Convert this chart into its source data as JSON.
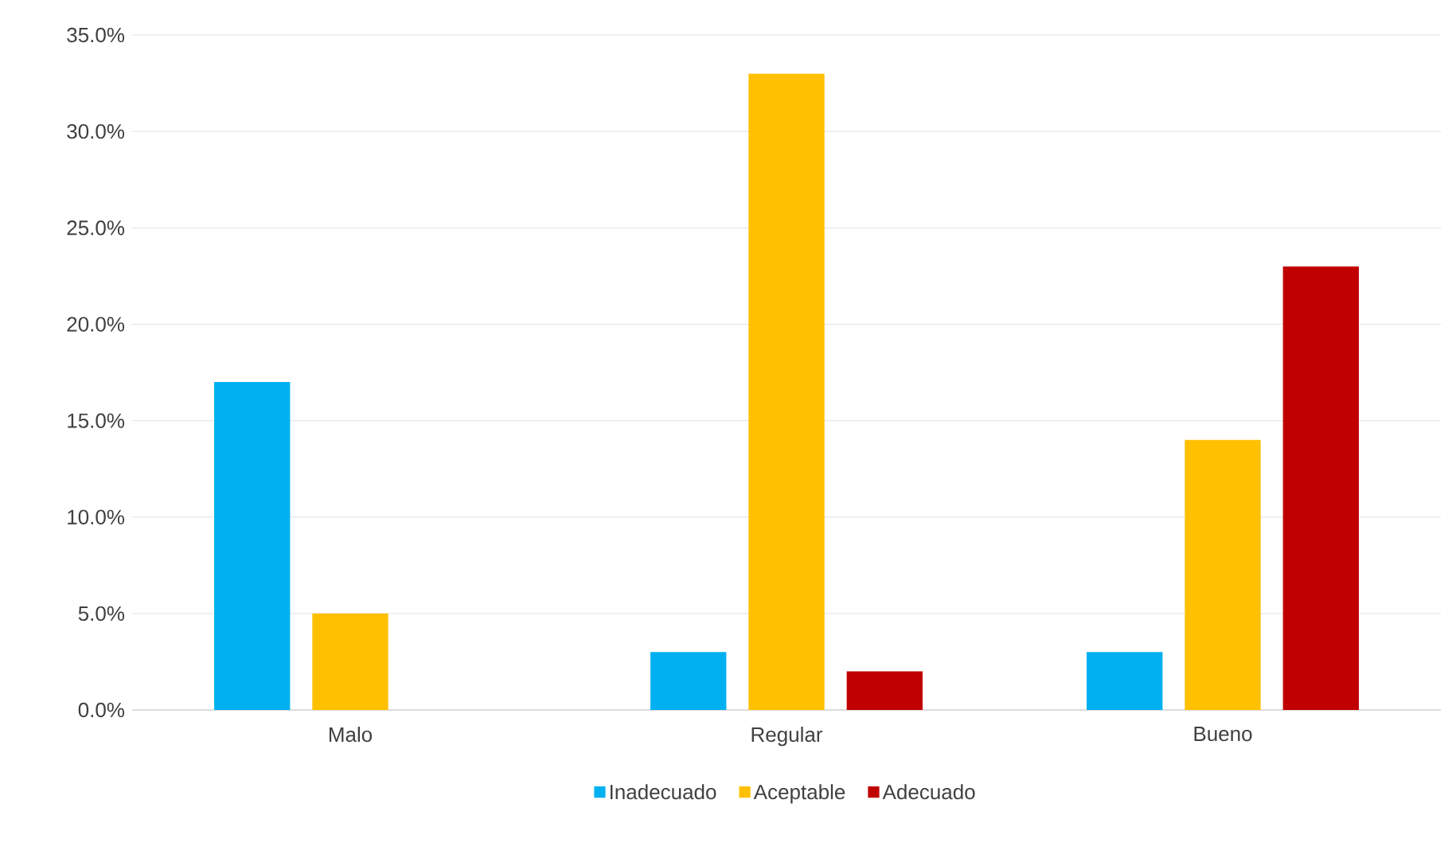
{
  "chart_data": {
    "type": "bar",
    "categories": [
      "Malo",
      "Regular",
      "Bueno"
    ],
    "series": [
      {
        "name": "Inadecuado",
        "color": "#00b0f0",
        "values": [
          17,
          3,
          3
        ]
      },
      {
        "name": "Aceptable",
        "color": "#ffc000",
        "values": [
          5,
          33,
          14
        ]
      },
      {
        "name": "Adecuado",
        "color": "#c00000",
        "values": [
          0,
          2,
          23
        ]
      }
    ],
    "ylim": [
      0,
      35
    ],
    "yticks": [
      {
        "value": 0,
        "label": "0.0%"
      },
      {
        "value": 5,
        "label": "5.0%"
      },
      {
        "value": 10,
        "label": "10.0%"
      },
      {
        "value": 15,
        "label": "15.0%"
      },
      {
        "value": 20,
        "label": "20.0%"
      },
      {
        "value": 25,
        "label": "25.0%"
      },
      {
        "value": 30,
        "label": "30.0%"
      },
      {
        "value": 35,
        "label": "35.0%"
      }
    ],
    "grid": "y",
    "legend": "bottom"
  }
}
